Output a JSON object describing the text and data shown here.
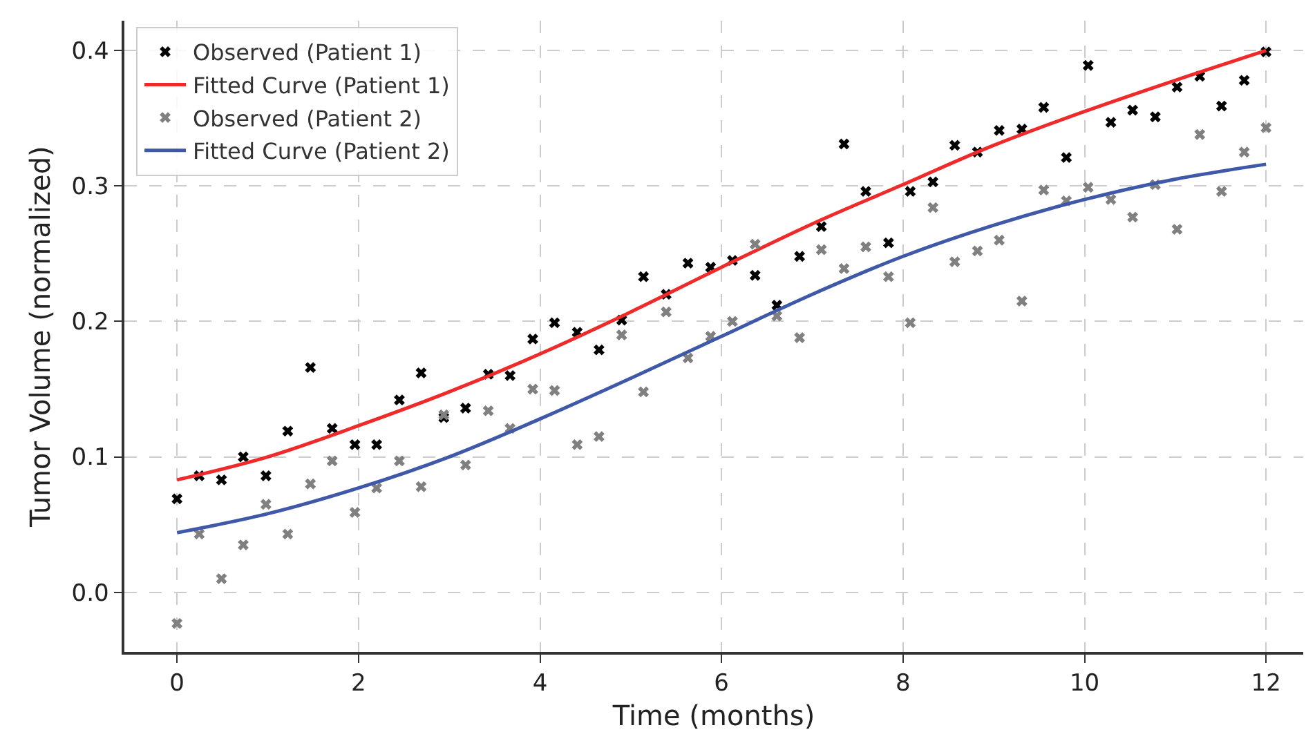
{
  "chart_data": {
    "type": "scatter",
    "xlabel": "Time (months)",
    "ylabel": "Tumor Volume (normalized)",
    "xlim": [
      -0.58,
      12.41
    ],
    "ylim": [
      -0.044,
      0.422
    ],
    "xticks": [
      0,
      2,
      4,
      6,
      8,
      10,
      12
    ],
    "yticks": [
      {
        "value": 0,
        "label": "0.0"
      },
      {
        "value": 0.1,
        "label": "0.1"
      },
      {
        "value": 0.2,
        "label": "0.2"
      },
      {
        "value": 0.3,
        "label": "0.3"
      },
      {
        "value": 0.4,
        "label": "0.4"
      }
    ],
    "grid": true,
    "legend": "top left",
    "series": [
      {
        "name": "Observed (Patient 1)",
        "marker": "cross",
        "color": "#000000",
        "x": [
          0,
          0.245,
          0.49,
          0.73,
          0.98,
          1.22,
          1.47,
          1.71,
          1.96,
          2.2,
          2.45,
          2.69,
          2.94,
          3.18,
          3.43,
          3.67,
          3.92,
          4.16,
          4.41,
          4.65,
          4.9,
          5.14,
          5.39,
          5.63,
          5.88,
          6.12,
          6.37,
          6.61,
          6.86,
          7.1,
          7.35,
          7.59,
          7.84,
          8.08,
          8.33,
          8.57,
          8.82,
          9.06,
          9.31,
          9.55,
          9.8,
          10.04,
          10.29,
          10.53,
          10.78,
          11.02,
          11.27,
          11.51,
          11.76,
          12
        ],
        "values": [
          0.069,
          0.086,
          0.083,
          0.1,
          0.086,
          0.119,
          0.166,
          0.121,
          0.109,
          0.109,
          0.142,
          0.162,
          0.129,
          0.136,
          0.161,
          0.16,
          0.187,
          0.199,
          0.192,
          0.179,
          0.201,
          0.233,
          0.22,
          0.243,
          0.24,
          0.245,
          0.234,
          0.212,
          0.248,
          0.27,
          0.331,
          0.296,
          0.258,
          0.296,
          0.303,
          0.33,
          0.325,
          0.341,
          0.342,
          0.358,
          0.321,
          0.389,
          0.347,
          0.356,
          0.351,
          0.373,
          0.381,
          0.359,
          0.378,
          0.399
        ]
      },
      {
        "name": "Fitted Curve (Patient 1)",
        "type": "line",
        "color": "#ee2a2a",
        "x": [
          0,
          1,
          2,
          3,
          4,
          5,
          6,
          7,
          8,
          9,
          10,
          11,
          12
        ],
        "values": [
          0.083,
          0.1,
          0.123,
          0.148,
          0.176,
          0.207,
          0.24,
          0.272,
          0.301,
          0.33,
          0.355,
          0.378,
          0.4
        ]
      },
      {
        "name": "Observed (Patient 2)",
        "marker": "cross",
        "color": "#808080",
        "x": [
          0,
          0.245,
          0.49,
          0.73,
          0.98,
          1.22,
          1.47,
          1.71,
          1.96,
          2.2,
          2.45,
          2.69,
          2.94,
          3.18,
          3.43,
          3.67,
          3.92,
          4.16,
          4.41,
          4.65,
          4.9,
          5.14,
          5.39,
          5.63,
          5.88,
          6.12,
          6.37,
          6.61,
          6.86,
          7.1,
          7.35,
          7.59,
          7.84,
          8.08,
          8.33,
          8.57,
          8.82,
          9.06,
          9.31,
          9.55,
          9.8,
          10.04,
          10.29,
          10.53,
          10.78,
          11.02,
          11.27,
          11.51,
          11.76,
          12
        ],
        "values": [
          -0.023,
          0.043,
          0.01,
          0.035,
          0.065,
          0.043,
          0.08,
          0.097,
          0.059,
          0.077,
          0.097,
          0.078,
          0.131,
          0.094,
          0.134,
          0.121,
          0.15,
          0.149,
          0.109,
          0.115,
          0.19,
          0.148,
          0.207,
          0.173,
          0.189,
          0.2,
          0.257,
          0.204,
          0.188,
          0.253,
          0.239,
          0.255,
          0.233,
          0.199,
          0.284,
          0.244,
          0.252,
          0.26,
          0.215,
          0.297,
          0.289,
          0.299,
          0.29,
          0.277,
          0.301,
          0.268,
          0.338,
          0.296,
          0.325,
          0.343
        ]
      },
      {
        "name": "Fitted Curve (Patient 2)",
        "type": "line",
        "color": "#3f58a8",
        "x": [
          0,
          1,
          2,
          3,
          4,
          5,
          6,
          7,
          8,
          9,
          10,
          11,
          12
        ],
        "values": [
          0.044,
          0.058,
          0.077,
          0.1,
          0.128,
          0.158,
          0.189,
          0.22,
          0.248,
          0.271,
          0.29,
          0.305,
          0.316
        ]
      }
    ]
  }
}
